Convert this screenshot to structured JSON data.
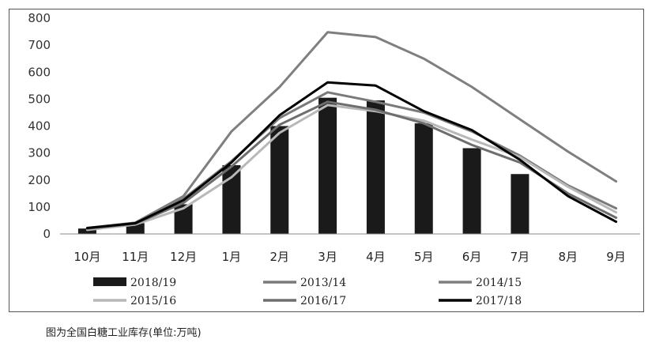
{
  "chart_data": {
    "type": "bar+line",
    "title": "",
    "xlabel": "",
    "ylabel": "",
    "ylim": [
      0,
      800
    ],
    "yticks": [
      "0",
      "100",
      "200",
      "300",
      "400",
      "500",
      "600",
      "700",
      "800"
    ],
    "categories": [
      "10月",
      "11月",
      "12月",
      "1月",
      "2月",
      "3月",
      "4月",
      "5月",
      "6月",
      "7月",
      "8月",
      "9月"
    ],
    "bar_series": {
      "name": "2018/19",
      "color": "#1a1a1a",
      "values": [
        20,
        40,
        110,
        255,
        400,
        505,
        495,
        410,
        318,
        222,
        null,
        null
      ]
    },
    "line_series": [
      {
        "name": "2013/14",
        "color": "#7a7a7a",
        "values": [
          18,
          38,
          130,
          270,
          430,
          525,
          490,
          450,
          380,
          290,
          180,
          95
        ]
      },
      {
        "name": "2014/15",
        "color": "#7f7f7f",
        "values": [
          22,
          42,
          140,
          380,
          545,
          748,
          730,
          650,
          545,
          425,
          305,
          195
        ]
      },
      {
        "name": "2015/16",
        "color": "#b8b8b8",
        "values": [
          15,
          35,
          95,
          210,
          375,
          478,
          455,
          420,
          350,
          285,
          175,
          80
        ]
      },
      {
        "name": "2016/17",
        "color": "#6e6e6e",
        "values": [
          20,
          38,
          115,
          250,
          405,
          490,
          460,
          410,
          330,
          265,
          150,
          60
        ]
      },
      {
        "name": "2017/18",
        "color": "#000000",
        "values": [
          22,
          40,
          125,
          265,
          440,
          562,
          550,
          455,
          385,
          275,
          140,
          45
        ]
      }
    ],
    "legend": {
      "placement": "bottom",
      "entries": [
        "2018/19",
        "2013/14",
        "2014/15",
        "2015/16",
        "2016/17",
        "2017/18"
      ]
    }
  },
  "caption": "图为全国白糖工业库存(单位:万吨)"
}
